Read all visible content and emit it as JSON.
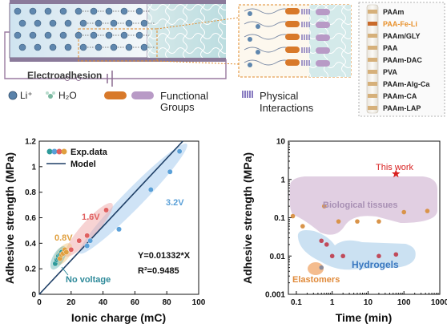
{
  "schematic": {
    "electroadhesion_label": "Electroadhesion",
    "legend": {
      "li": "Li⁺",
      "water": "H₂O",
      "functional_line1": "Functional",
      "functional_line2": "Groups",
      "physical_line1": "Physical",
      "physical_line2": "Interactions"
    },
    "materials": [
      "PAAm",
      "PAA-Fe-Li",
      "PAAm/GLY",
      "PAA",
      "PAAm-DAC",
      "PVA",
      "PAAm-Alg-Ca",
      "PAAm-CA",
      "PAAm-LAP"
    ],
    "highlight_color": "#e8902a"
  },
  "chart_data": [
    {
      "type": "scatter",
      "xlabel": "Ionic charge (mC)",
      "ylabel": "Adhesive strength (MPa)",
      "xlim": [
        0,
        100
      ],
      "ylim": [
        0,
        1.2
      ],
      "xticks": [
        "0",
        "20",
        "40",
        "60",
        "80",
        "100"
      ],
      "yticks": [
        "0",
        "0.2",
        "0.4",
        "0.6",
        "0.8",
        "1",
        "1.2"
      ],
      "legend": {
        "placement": "top-left",
        "scatter_label": "Exp.data",
        "line_label": "Model"
      },
      "series": [
        {
          "name": "No voltage",
          "color": "#2e9a9a",
          "x": [
            10,
            11,
            12,
            12,
            13,
            14
          ],
          "y": [
            0.24,
            0.27,
            0.28,
            0.3,
            0.31,
            0.33
          ]
        },
        {
          "name": "0.8V",
          "color": "#e0a040",
          "x": [
            13,
            14,
            15,
            16,
            17
          ],
          "y": [
            0.28,
            0.31,
            0.32,
            0.35,
            0.33
          ]
        },
        {
          "name": "1.6V",
          "color": "#e06060",
          "x": [
            20,
            25,
            30,
            42
          ],
          "y": [
            0.35,
            0.42,
            0.46,
            0.66
          ]
        },
        {
          "name": "3.2V",
          "color": "#5aa0d8",
          "x": [
            30,
            32,
            50,
            70,
            82,
            88
          ],
          "y": [
            0.38,
            0.42,
            0.51,
            0.82,
            0.96,
            1.12
          ]
        }
      ],
      "model": {
        "equation": "Y=0.01332*X",
        "r2": "R²=0.9485",
        "slope": 0.01332,
        "color": "#1e3f66"
      }
    },
    {
      "type": "scatter",
      "xlabel": "Time (min)",
      "ylabel": "Adhesive strength (MPa)",
      "xscale": "log",
      "yscale": "log",
      "xlim": [
        0.06,
        1000
      ],
      "ylim": [
        0.001,
        10
      ],
      "xticks": [
        "0.1",
        "1",
        "10",
        "100",
        "1000"
      ],
      "yticks": [
        "0.001",
        "0.01",
        "0.1",
        "1",
        "10"
      ],
      "series": [
        {
          "name": "Biological tissues",
          "color": "#d9944a",
          "x": [
            0.08,
            0.15,
            0.6,
            1.5,
            5,
            20,
            100,
            450
          ],
          "y": [
            0.11,
            0.06,
            0.2,
            0.08,
            0.08,
            0.08,
            0.14,
            0.15
          ]
        },
        {
          "name": "Hydrogels",
          "color": "#c04a5a",
          "x": [
            0.5,
            0.7,
            1.0,
            2.0,
            20,
            60
          ],
          "y": [
            0.025,
            0.02,
            0.01,
            0.01,
            0.01,
            0.011
          ]
        },
        {
          "name": "Elastomers",
          "color": "#8a8a9a",
          "x": [
            0.5
          ],
          "y": [
            0.005
          ]
        }
      ],
      "highlight": {
        "name": "This work",
        "x": 60,
        "y": 1.4,
        "color": "#d82020"
      }
    }
  ]
}
